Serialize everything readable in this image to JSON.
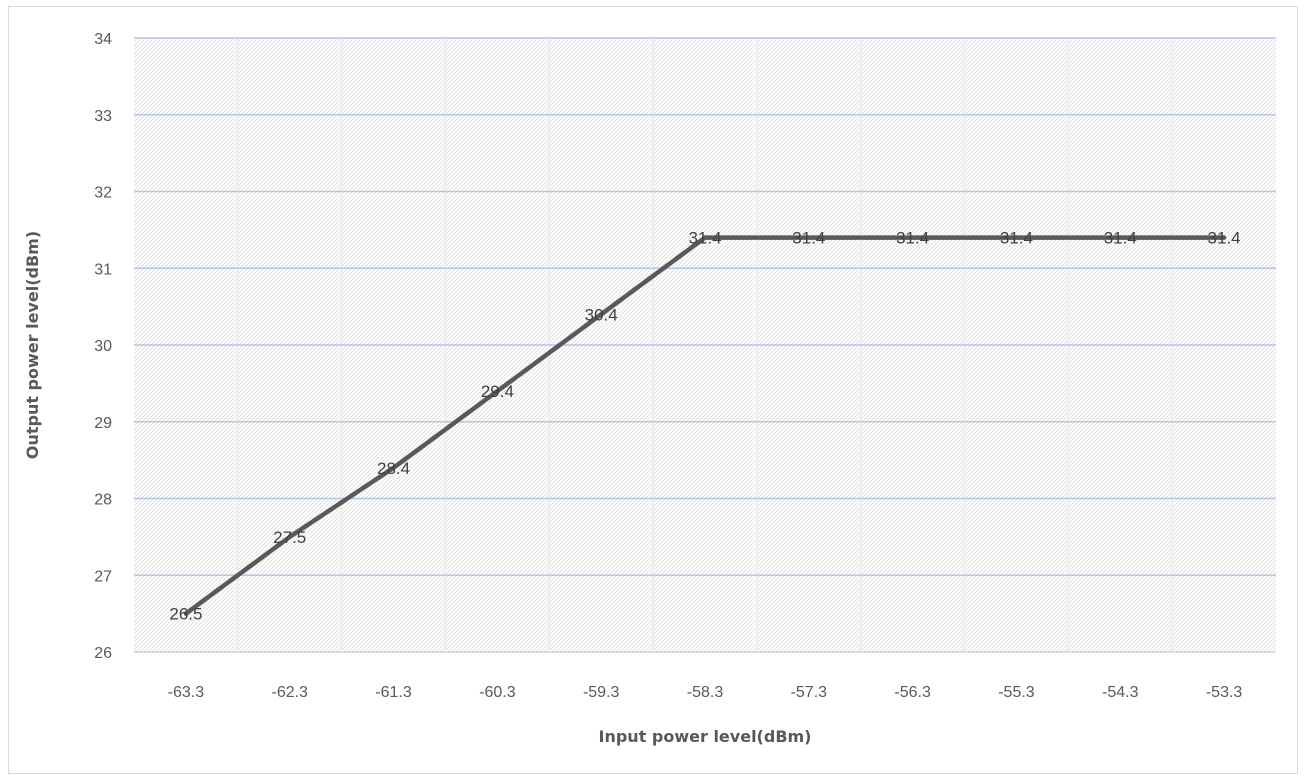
{
  "chart_data": {
    "type": "line",
    "title": "",
    "xlabel": "Input power level(dBm)",
    "ylabel": "Output power level(dBm)",
    "categories": [
      "-63.3",
      "-62.3",
      "-61.3",
      "-60.3",
      "-59.3",
      "-58.3",
      "-57.3",
      "-56.3",
      "-55.3",
      "-54.3",
      "-53.3"
    ],
    "series": [
      {
        "values": [
          26.5,
          27.5,
          28.4,
          29.4,
          30.4,
          31.4,
          31.4,
          31.4,
          31.4,
          31.4,
          31.4
        ],
        "color": "#595959"
      }
    ],
    "data_labels": [
      "26.5",
      "27.5",
      "28.4",
      "29.4",
      "30.4",
      "31.4",
      "31.4",
      "31.4",
      "31.4",
      "31.4",
      "31.4"
    ],
    "ylim": [
      26,
      34
    ],
    "yticks": [
      "26",
      "27",
      "28",
      "29",
      "30",
      "31",
      "32",
      "33",
      "34"
    ],
    "grid": true,
    "legend": "none",
    "colors": {
      "line": "#595959",
      "gridline": "#b4c7e7",
      "axis": "#bfbfbf",
      "text": "#595959"
    }
  }
}
